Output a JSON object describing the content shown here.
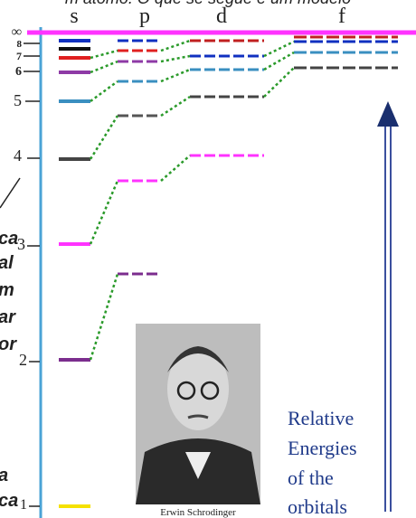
{
  "header": {
    "text": "m átomo. O que se segue é um modelo"
  },
  "columns": [
    "s",
    "p",
    "d",
    "f"
  ],
  "levels": [
    "∞",
    "8",
    "7",
    "6",
    "5",
    "4",
    "3",
    "2",
    "1"
  ],
  "left_fragments": [
    "ca",
    "al",
    "m",
    "ar",
    "or",
    "a",
    "ca"
  ],
  "photo": {
    "caption": "Erwin Schrodinger"
  },
  "legend": {
    "lines": [
      "Relative",
      "Energies",
      "of the",
      "orbitals"
    ]
  }
}
